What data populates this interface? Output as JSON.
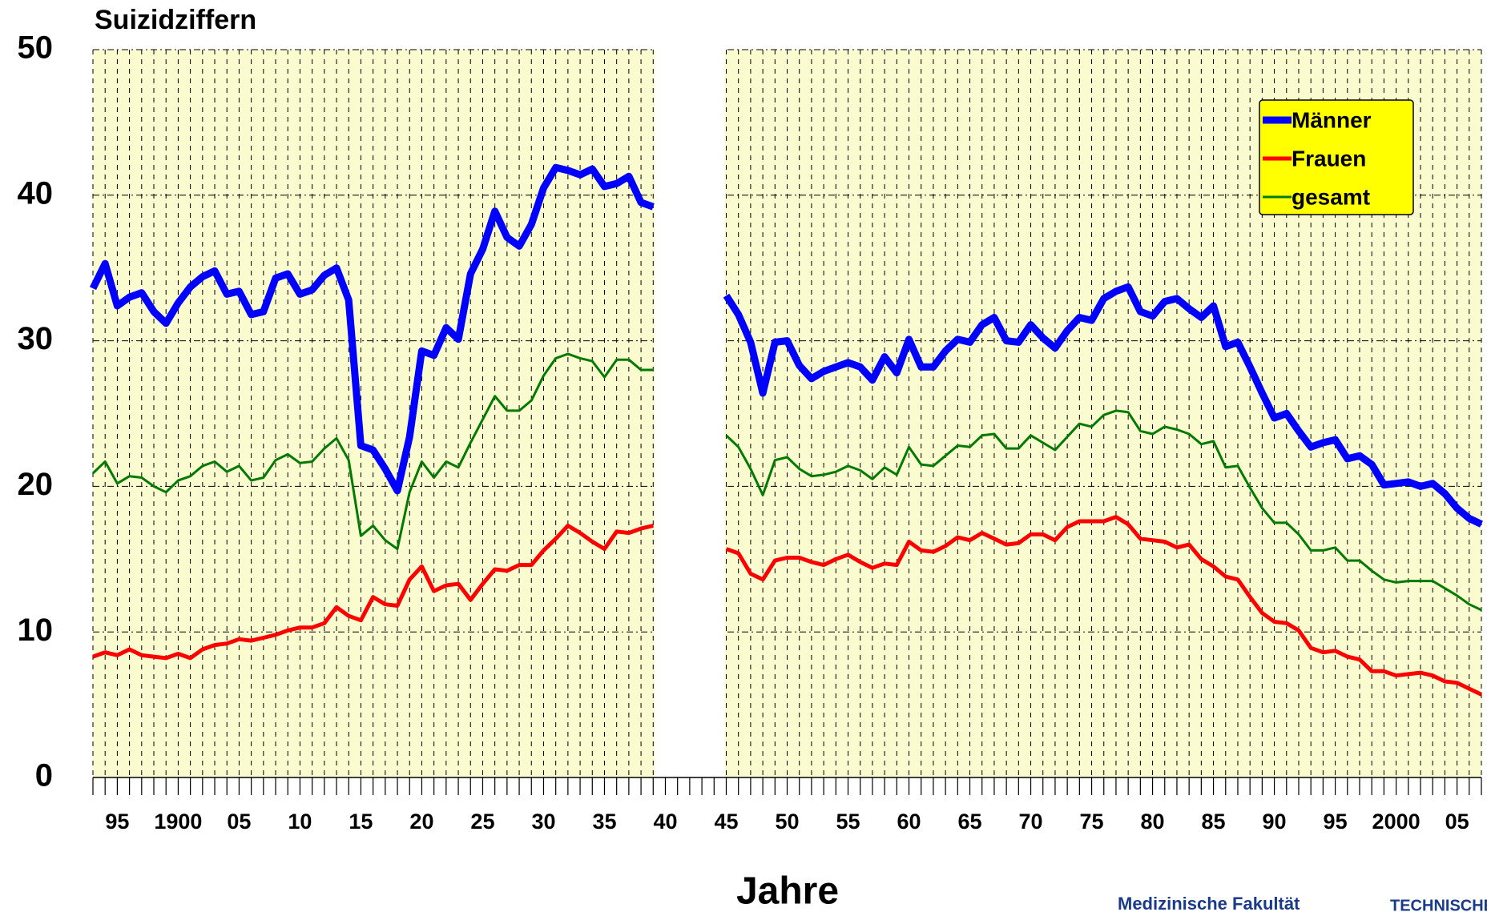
{
  "chart_data": {
    "type": "line",
    "title": "Suizidziffern",
    "x_label": "Jahre",
    "footer": [
      "Medizinische Fakultät",
      "TECHNISCHE"
    ],
    "x": [
      1893,
      1894,
      1895,
      1896,
      1897,
      1898,
      1899,
      1900,
      1901,
      1902,
      1903,
      1904,
      1905,
      1906,
      1907,
      1908,
      1909,
      1910,
      1911,
      1912,
      1913,
      1914,
      1915,
      1916,
      1917,
      1918,
      1919,
      1920,
      1921,
      1922,
      1923,
      1924,
      1925,
      1926,
      1927,
      1928,
      1929,
      1930,
      1931,
      1932,
      1933,
      1934,
      1935,
      1936,
      1937,
      1938,
      1939,
      1940,
      1941,
      1942,
      1943,
      1944,
      1945,
      1946,
      1947,
      1948,
      1949,
      1950,
      1951,
      1952,
      1953,
      1954,
      1955,
      1956,
      1957,
      1958,
      1959,
      1960,
      1961,
      1962,
      1963,
      1964,
      1965,
      1966,
      1967,
      1968,
      1969,
      1970,
      1971,
      1972,
      1973,
      1974,
      1975,
      1976,
      1977,
      1978,
      1979,
      1980,
      1981,
      1982,
      1983,
      1984,
      1985,
      1986,
      1987,
      1988,
      1989,
      1990,
      1991,
      1992,
      1993,
      1994,
      1995,
      1996,
      1997,
      1998,
      1999,
      2000,
      2001,
      2002,
      2003,
      2004,
      2005,
      2006,
      2007
    ],
    "series": [
      {
        "name": "Männer",
        "color": "#0000ff",
        "values": [
          33.6,
          35.3,
          32.4,
          33.0,
          33.3,
          32.0,
          31.2,
          32.6,
          33.7,
          34.4,
          34.8,
          33.2,
          33.4,
          31.8,
          32.0,
          34.3,
          34.6,
          33.2,
          33.5,
          34.5,
          35.0,
          32.8,
          22.8,
          22.5,
          21.2,
          19.7,
          23.4,
          29.3,
          29.0,
          30.9,
          30.1,
          34.6,
          36.3,
          38.9,
          37.1,
          36.5,
          38.0,
          40.5,
          41.9,
          41.7,
          41.4,
          41.8,
          40.6,
          40.8,
          41.3,
          39.5,
          39.2,
          null,
          null,
          null,
          null,
          null,
          33.1,
          31.8,
          29.9,
          26.4,
          29.9,
          30.0,
          28.3,
          27.4,
          27.9,
          28.2,
          28.5,
          28.2,
          27.3,
          28.9,
          27.8,
          30.1,
          28.2,
          28.2,
          29.3,
          30.1,
          29.9,
          31.1,
          31.6,
          30.0,
          29.9,
          31.1,
          30.2,
          29.5,
          30.7,
          31.6,
          31.4,
          32.9,
          33.4,
          33.7,
          32.0,
          31.7,
          32.7,
          32.9,
          32.2,
          31.6,
          32.4,
          29.6,
          29.9,
          28.2,
          26.4,
          24.7,
          25.0,
          23.8,
          22.7,
          23.0,
          23.2,
          21.9,
          22.1,
          21.5,
          20.1,
          20.2,
          20.3,
          20.0,
          20.2,
          19.5,
          18.5,
          17.8,
          17.4
        ]
      },
      {
        "name": "Frauen",
        "color": "#ff0000",
        "values": [
          8.3,
          8.6,
          8.4,
          8.8,
          8.4,
          8.3,
          8.2,
          8.5,
          8.2,
          8.8,
          9.1,
          9.2,
          9.5,
          9.4,
          9.6,
          9.8,
          10.1,
          10.3,
          10.3,
          10.6,
          11.7,
          11.1,
          10.8,
          12.4,
          11.9,
          11.8,
          13.6,
          14.5,
          12.8,
          13.2,
          13.3,
          12.2,
          13.3,
          14.3,
          14.2,
          14.6,
          14.6,
          15.6,
          16.4,
          17.3,
          16.8,
          16.2,
          15.7,
          16.9,
          16.8,
          17.1,
          17.3,
          null,
          null,
          null,
          null,
          null,
          15.7,
          15.4,
          14.0,
          13.6,
          14.9,
          15.1,
          15.1,
          14.8,
          14.6,
          15.0,
          15.3,
          14.8,
          14.4,
          14.7,
          14.6,
          16.2,
          15.6,
          15.5,
          15.9,
          16.5,
          16.3,
          16.8,
          16.4,
          16.0,
          16.1,
          16.7,
          16.7,
          16.3,
          17.2,
          17.6,
          17.6,
          17.6,
          17.9,
          17.4,
          16.4,
          16.3,
          16.2,
          15.8,
          16.0,
          15.0,
          14.5,
          13.8,
          13.6,
          12.4,
          11.3,
          10.7,
          10.6,
          10.1,
          8.9,
          8.6,
          8.7,
          8.3,
          8.1,
          7.3,
          7.3,
          7.0,
          7.1,
          7.2,
          7.0,
          6.6,
          6.5,
          6.1,
          5.7
        ]
      },
      {
        "name": "gesamt",
        "color": "#007a00",
        "values": [
          20.9,
          21.7,
          20.2,
          20.7,
          20.6,
          20.0,
          19.6,
          20.4,
          20.7,
          21.4,
          21.7,
          21.0,
          21.4,
          20.4,
          20.6,
          21.8,
          22.2,
          21.6,
          21.7,
          22.6,
          23.3,
          21.8,
          16.6,
          17.3,
          16.3,
          15.7,
          19.6,
          21.7,
          20.6,
          21.7,
          21.3,
          23.0,
          24.6,
          26.2,
          25.2,
          25.2,
          25.9,
          27.6,
          28.8,
          29.1,
          28.8,
          28.6,
          27.5,
          28.7,
          28.7,
          28.0,
          28.0,
          null,
          null,
          null,
          null,
          null,
          23.5,
          22.7,
          21.2,
          19.4,
          21.8,
          22.0,
          21.2,
          20.7,
          20.8,
          21.0,
          21.4,
          21.1,
          20.5,
          21.3,
          20.8,
          22.7,
          21.5,
          21.4,
          22.1,
          22.8,
          22.7,
          23.5,
          23.6,
          22.6,
          22.6,
          23.5,
          23.0,
          22.5,
          23.4,
          24.3,
          24.1,
          24.9,
          25.2,
          25.1,
          23.8,
          23.6,
          24.1,
          23.9,
          23.6,
          22.9,
          23.1,
          21.3,
          21.4,
          19.9,
          18.5,
          17.5,
          17.5,
          16.7,
          15.6,
          15.6,
          15.8,
          14.9,
          14.9,
          14.2,
          13.6,
          13.4,
          13.5,
          13.5,
          13.5,
          13.0,
          12.5,
          11.9,
          11.5
        ]
      }
    ],
    "xlim": [
      1893,
      2007
    ],
    "xticks": [
      {
        "value": 1895,
        "label": "95"
      },
      1900,
      {
        "value": 1905,
        "label": "05"
      },
      {
        "value": 1910,
        "label": "10"
      },
      {
        "value": 1915,
        "label": "15"
      },
      {
        "value": 1920,
        "label": "20"
      },
      {
        "value": 1925,
        "label": "25"
      },
      {
        "value": 1930,
        "label": "30"
      },
      {
        "value": 1935,
        "label": "35"
      },
      {
        "value": 1940,
        "label": "40"
      },
      {
        "value": 1945,
        "label": "45"
      },
      {
        "value": 1950,
        "label": "50"
      },
      {
        "value": 1955,
        "label": "55"
      },
      {
        "value": 1960,
        "label": "60"
      },
      {
        "value": 1965,
        "label": "65"
      },
      {
        "value": 1970,
        "label": "70"
      },
      {
        "value": 1975,
        "label": "75"
      },
      {
        "value": 1980,
        "label": "80"
      },
      {
        "value": 1985,
        "label": "85"
      },
      {
        "value": 1990,
        "label": "90"
      },
      {
        "value": 1995,
        "label": "95"
      },
      2000,
      {
        "value": 2005,
        "label": "05"
      }
    ],
    "ylim": [
      0,
      50
    ],
    "yticks": [
      0,
      10,
      20,
      30,
      40,
      50
    ],
    "grid": true,
    "legend": "top-right",
    "background": "#fbfbd0"
  }
}
